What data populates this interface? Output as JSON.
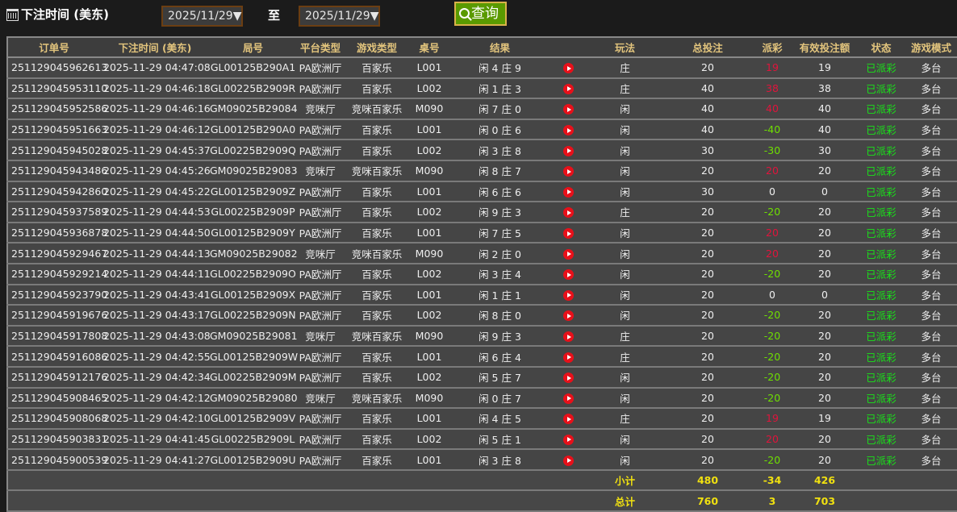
{
  "filter": {
    "label": "下注时间 (美东)",
    "from": "2025/11/29▼",
    "to_label": "至",
    "to": "2025/11/29▼",
    "query": "查询"
  },
  "colors": {
    "positive_payout": "#e0143c",
    "negative_payout": "#6fe000",
    "status": "#19e319",
    "header": "#e3c57d",
    "totals": "#f0e010"
  },
  "headers": [
    "订单号",
    "下注时间 (美东)",
    "局号",
    "平台类型",
    "游戏类型",
    "桌号",
    "结果",
    "",
    "玩法",
    "总投注",
    "派彩",
    "有效投注额",
    "状态",
    "游戏模式"
  ],
  "rows": [
    [
      "251129045962613",
      "2025-11-29 04:47:08",
      "GL00125B290A1",
      "PA欧洲厅",
      "百家乐",
      "L001",
      "闲 4 庄 9",
      "庄",
      "20",
      "19",
      "19",
      "已派彩",
      "多台"
    ],
    [
      "251129045953110",
      "2025-11-29 04:46:18",
      "GL00225B2909R",
      "PA欧洲厅",
      "百家乐",
      "L002",
      "闲 1 庄 3",
      "庄",
      "40",
      "38",
      "38",
      "已派彩",
      "多台"
    ],
    [
      "251129045952586",
      "2025-11-29 04:46:16",
      "GM09025B29084",
      "竞咪厅",
      "竞咪百家乐",
      "M090",
      "闲 7 庄 0",
      "闲",
      "40",
      "40",
      "40",
      "已派彩",
      "多台"
    ],
    [
      "251129045951663",
      "2025-11-29 04:46:12",
      "GL00125B290A0",
      "PA欧洲厅",
      "百家乐",
      "L001",
      "闲 0 庄 6",
      "闲",
      "40",
      "-40",
      "40",
      "已派彩",
      "多台"
    ],
    [
      "251129045945028",
      "2025-11-29 04:45:37",
      "GL00225B2909Q",
      "PA欧洲厅",
      "百家乐",
      "L002",
      "闲 3 庄 8",
      "闲",
      "30",
      "-30",
      "30",
      "已派彩",
      "多台"
    ],
    [
      "251129045943486",
      "2025-11-29 04:45:26",
      "GM09025B29083",
      "竞咪厅",
      "竞咪百家乐",
      "M090",
      "闲 8 庄 7",
      "闲",
      "20",
      "20",
      "20",
      "已派彩",
      "多台"
    ],
    [
      "251129045942860",
      "2025-11-29 04:45:22",
      "GL00125B2909Z",
      "PA欧洲厅",
      "百家乐",
      "L001",
      "闲 6 庄 6",
      "闲",
      "30",
      "0",
      "0",
      "已派彩",
      "多台"
    ],
    [
      "251129045937589",
      "2025-11-29 04:44:53",
      "GL00225B2909P",
      "PA欧洲厅",
      "百家乐",
      "L002",
      "闲 9 庄 3",
      "庄",
      "20",
      "-20",
      "20",
      "已派彩",
      "多台"
    ],
    [
      "251129045936878",
      "2025-11-29 04:44:50",
      "GL00125B2909Y",
      "PA欧洲厅",
      "百家乐",
      "L001",
      "闲 7 庄 5",
      "闲",
      "20",
      "20",
      "20",
      "已派彩",
      "多台"
    ],
    [
      "251129045929467",
      "2025-11-29 04:44:13",
      "GM09025B29082",
      "竞咪厅",
      "竞咪百家乐",
      "M090",
      "闲 2 庄 0",
      "闲",
      "20",
      "20",
      "20",
      "已派彩",
      "多台"
    ],
    [
      "251129045929214",
      "2025-11-29 04:44:11",
      "GL00225B2909O",
      "PA欧洲厅",
      "百家乐",
      "L002",
      "闲 3 庄 4",
      "闲",
      "20",
      "-20",
      "20",
      "已派彩",
      "多台"
    ],
    [
      "251129045923790",
      "2025-11-29 04:43:41",
      "GL00125B2909X",
      "PA欧洲厅",
      "百家乐",
      "L001",
      "闲 1 庄 1",
      "闲",
      "20",
      "0",
      "0",
      "已派彩",
      "多台"
    ],
    [
      "251129045919676",
      "2025-11-29 04:43:17",
      "GL00225B2909N",
      "PA欧洲厅",
      "百家乐",
      "L002",
      "闲 8 庄 0",
      "闲",
      "20",
      "-20",
      "20",
      "已派彩",
      "多台"
    ],
    [
      "251129045917808",
      "2025-11-29 04:43:08",
      "GM09025B29081",
      "竞咪厅",
      "竞咪百家乐",
      "M090",
      "闲 9 庄 3",
      "庄",
      "20",
      "-20",
      "20",
      "已派彩",
      "多台"
    ],
    [
      "251129045916086",
      "2025-11-29 04:42:55",
      "GL00125B2909W",
      "PA欧洲厅",
      "百家乐",
      "L001",
      "闲 6 庄 4",
      "庄",
      "20",
      "-20",
      "20",
      "已派彩",
      "多台"
    ],
    [
      "251129045912176",
      "2025-11-29 04:42:34",
      "GL00225B2909M",
      "PA欧洲厅",
      "百家乐",
      "L002",
      "闲 5 庄 7",
      "闲",
      "20",
      "-20",
      "20",
      "已派彩",
      "多台"
    ],
    [
      "251129045908465",
      "2025-11-29 04:42:12",
      "GM09025B29080",
      "竞咪厅",
      "竞咪百家乐",
      "M090",
      "闲 0 庄 7",
      "闲",
      "20",
      "-20",
      "20",
      "已派彩",
      "多台"
    ],
    [
      "251129045908068",
      "2025-11-29 04:42:10",
      "GL00125B2909V",
      "PA欧洲厅",
      "百家乐",
      "L001",
      "闲 4 庄 5",
      "庄",
      "20",
      "19",
      "19",
      "已派彩",
      "多台"
    ],
    [
      "251129045903831",
      "2025-11-29 04:41:45",
      "GL00225B2909L",
      "PA欧洲厅",
      "百家乐",
      "L002",
      "闲 5 庄 1",
      "闲",
      "20",
      "20",
      "20",
      "已派彩",
      "多台"
    ],
    [
      "251129045900539",
      "2025-11-29 04:41:27",
      "GL00125B2909U",
      "PA欧洲厅",
      "百家乐",
      "L001",
      "闲 3 庄 8",
      "闲",
      "20",
      "-20",
      "20",
      "已派彩",
      "多台"
    ]
  ],
  "subtotal": {
    "label": "小计",
    "total_bet": "480",
    "payout": "-34",
    "valid_bet": "426"
  },
  "grand_total": {
    "label": "总计",
    "total_bet": "760",
    "payout": "3",
    "valid_bet": "703"
  }
}
